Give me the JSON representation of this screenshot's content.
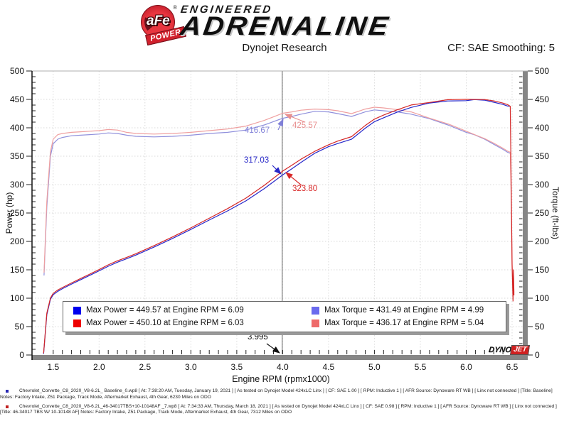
{
  "header": {
    "brand_badge_text": "aFe",
    "brand_badge_reg": "®",
    "brand_ribbon": "POWER",
    "brand_line1": "ENGINEERED",
    "brand_line2": "ADRENALINE",
    "subtitle": "Dynojet Research",
    "smoothing_label": "CF: SAE Smoothing: 5"
  },
  "chart_data": {
    "type": "line",
    "xlabel": "Engine RPM (rpmx1000)",
    "ylabel_left": "Power (hp)",
    "ylabel_right": "Torque (ft-lbs)",
    "x_range": [
      1.27,
      6.64
    ],
    "y_range": [
      0,
      500
    ],
    "x_major_ticks": [
      1.5,
      2.0,
      2.5,
      3.0,
      3.5,
      4.0,
      4.5,
      5.0,
      5.5,
      6.0,
      6.5
    ],
    "x_tick_labels": [
      "1.5",
      "2.0",
      "2.5",
      "3.0",
      "3.5",
      "4.0",
      "4.5",
      "5.0",
      "5.5",
      "6.0",
      "6.5"
    ],
    "x_minor_step": 0.1,
    "y_major_step": 50,
    "y_minor_step": 10,
    "grid": "dotted",
    "legend_position": "bottom-inside",
    "cursor_rpm": 3.995,
    "cursor_label": "3.995",
    "callouts": [
      {
        "text": "416.67",
        "series": "torque-baseline",
        "at_rpm": 3.995,
        "color": "#8080d8"
      },
      {
        "text": "425.57",
        "series": "torque-afe",
        "at_rpm": 3.995,
        "color": "#e89090"
      },
      {
        "text": "317.03",
        "series": "power-baseline",
        "at_rpm": 3.995,
        "color": "#2828c8"
      },
      {
        "text": "323.80",
        "series": "power-afe",
        "at_rpm": 3.995,
        "color": "#d82828"
      }
    ],
    "series": [
      {
        "id": "torque-baseline",
        "name": "Torque - Baseline",
        "unit": "ft-lbs",
        "color": "#9090dc",
        "x": [
          1.4,
          1.43,
          1.47,
          1.5,
          1.55,
          1.6,
          1.7,
          1.8,
          1.9,
          2.0,
          2.1,
          2.2,
          2.3,
          2.4,
          2.6,
          2.8,
          3.0,
          3.2,
          3.4,
          3.6,
          3.8,
          4.0,
          4.1,
          4.2,
          4.35,
          4.5,
          4.6,
          4.75,
          4.9,
          5.0,
          5.1,
          5.25,
          5.4,
          5.6,
          5.8,
          6.0,
          6.09,
          6.2,
          6.3,
          6.4,
          6.45,
          6.48
        ],
        "y": [
          140,
          260,
          350,
          372,
          380,
          383,
          386,
          387,
          388,
          389,
          391,
          390,
          387,
          385,
          384,
          385,
          387,
          390,
          392,
          396,
          405,
          416.7,
          420,
          424,
          429,
          428,
          425,
          420,
          428,
          431.5,
          430,
          428,
          424,
          416,
          405,
          392,
          387.7,
          380,
          371,
          362,
          357,
          355
        ]
      },
      {
        "id": "torque-afe",
        "name": "Torque - 46-34017 TBS W/ 10-10148 AF",
        "unit": "ft-lbs",
        "color": "#efa0a0",
        "x": [
          1.4,
          1.43,
          1.47,
          1.5,
          1.55,
          1.6,
          1.7,
          1.8,
          1.9,
          2.0,
          2.1,
          2.2,
          2.3,
          2.4,
          2.6,
          2.8,
          3.0,
          3.2,
          3.4,
          3.6,
          3.8,
          4.0,
          4.1,
          4.2,
          4.35,
          4.5,
          4.6,
          4.75,
          4.9,
          5.0,
          5.1,
          5.25,
          5.4,
          5.6,
          5.8,
          6.0,
          6.09,
          6.2,
          6.3,
          6.4,
          6.45,
          6.48,
          6.49,
          6.5,
          6.51,
          6.515,
          6.52
        ],
        "y": [
          145,
          270,
          358,
          380,
          388,
          390,
          392,
          393,
          394,
          395,
          397,
          396,
          392,
          390,
          389,
          390,
          392,
          395,
          398,
          403,
          413,
          425.6,
          428,
          431,
          433,
          432,
          430,
          425,
          433,
          436.2,
          435,
          432,
          428,
          417,
          407,
          394,
          388,
          381,
          373,
          364,
          359,
          357,
          280,
          150,
          100,
          145,
          110
        ]
      },
      {
        "id": "power-baseline",
        "name": "Power - Baseline",
        "unit": "hp",
        "color": "#2626c9",
        "x": [
          1.395,
          1.43,
          1.47,
          1.5,
          1.55,
          1.6,
          1.7,
          1.8,
          1.9,
          2.0,
          2.1,
          2.2,
          2.3,
          2.4,
          2.6,
          2.8,
          3.0,
          3.2,
          3.4,
          3.6,
          3.8,
          4.0,
          4.1,
          4.2,
          4.35,
          4.5,
          4.6,
          4.75,
          4.9,
          5.0,
          5.1,
          5.25,
          5.4,
          5.6,
          5.8,
          6.0,
          6.09,
          6.2,
          6.3,
          6.4,
          6.45,
          6.48
        ],
        "y": [
          2,
          70.8,
          98,
          106.2,
          112.1,
          116.7,
          124.9,
          132.6,
          140.4,
          148.1,
          156.3,
          163.4,
          169.5,
          175.9,
          190.1,
          205.3,
          221.1,
          237.6,
          253.8,
          271.4,
          293,
          317,
          327.9,
          339.1,
          355.3,
          366.7,
          372.2,
          379.9,
          399.3,
          410.8,
          417.6,
          427.8,
          435.9,
          443.6,
          447.3,
          447.8,
          449.6,
          448.6,
          445,
          441.1,
          438.4,
          438
        ]
      },
      {
        "id": "power-afe",
        "name": "Power - 46-34017 TBS W/ 10-10148 AF",
        "unit": "hp",
        "color": "#d42626",
        "x": [
          1.395,
          1.43,
          1.47,
          1.5,
          1.55,
          1.6,
          1.7,
          1.8,
          1.9,
          2.0,
          2.1,
          2.2,
          2.3,
          2.4,
          2.6,
          2.8,
          3.0,
          3.2,
          3.4,
          3.6,
          3.8,
          4.0,
          4.1,
          4.2,
          4.35,
          4.5,
          4.6,
          4.75,
          4.9,
          5.0,
          5.1,
          5.25,
          5.4,
          5.6,
          5.8,
          6.0,
          6.09,
          6.2,
          6.3,
          6.4,
          6.45,
          6.48,
          6.49,
          6.5,
          6.51,
          6.515,
          6.52
        ],
        "y": [
          3,
          73.5,
          100.2,
          108.5,
          114.5,
          118.8,
          126.9,
          134.7,
          142.5,
          150.4,
          158.7,
          165.9,
          171.7,
          178.2,
          192.6,
          207.9,
          223.9,
          240.7,
          257.7,
          276.2,
          298.8,
          323.8,
          334.1,
          344.7,
          358.6,
          370.1,
          376.6,
          384.4,
          404,
          415.3,
          422.4,
          431.8,
          440.1,
          444.6,
          449.5,
          450.1,
          449.9,
          449.8,
          447.4,
          443.5,
          440.9,
          438,
          300,
          160,
          95,
          150,
          105
        ]
      }
    ]
  },
  "legend": {
    "items": [
      {
        "swatch_color": "#0000ee",
        "text": "Max Power = 449.57 at Engine RPM = 6.09"
      },
      {
        "swatch_color": "#ee0000",
        "text": "Max Power = 450.10 at Engine RPM = 6.03"
      },
      {
        "swatch_color": "#6a6aee",
        "text": "Max Torque = 431.49 at Engine RPM = 4.99"
      },
      {
        "swatch_color": "#ee6a6a",
        "text": "Max Torque = 436.17 at Engine RPM = 5.04"
      }
    ]
  },
  "watermark": {
    "part1": "DYNO",
    "part2": "JET"
  },
  "footnotes": [
    {
      "bullet_color": "#2a2ab4",
      "text": "Chevrolet_Corvette_C8_2020_V8-6.2L_ Baseline_0.wp8 [ At: 7:38:20 AM, Tuesday, January 19, 2021 ] [ As tested on Dynojet Model 424xLC Linx ] [ CF: SAE 1.00 ] [ RPM: Inductive 1 ] [ AFR Source: Dynoware RT WB ] [ Linx not connected ] [Title: Baseline]  Notes: Factory Intake, Z51 Package, Track Mode, Aftermarket Exhaust, 4th Gear, 6230 Miles on ODO"
    },
    {
      "bullet_color": "#c02020",
      "text": "Chevrolet_Corvette_C8_2020_V8-6.2L_46-34017TBS+10-10148AF _7.wp8 [ At: 7:34:33 AM, Thursday, March 18, 2021 ] [ As tested on Dynojet Model 424xLC Linx ] [ CF: SAE 0.98 ] [ RPM: Inductive 1 ] [ AFR Source: Dynoware RT WB ] [ Linx not connected ] [Title: 46-34017 TBS W/ 10-10148 AF]  Notes: Factory Intake, Z51 Package, Track Mode, Aftermarket Exhaust, 4th Gear, 7312 Miles on ODO"
    }
  ]
}
